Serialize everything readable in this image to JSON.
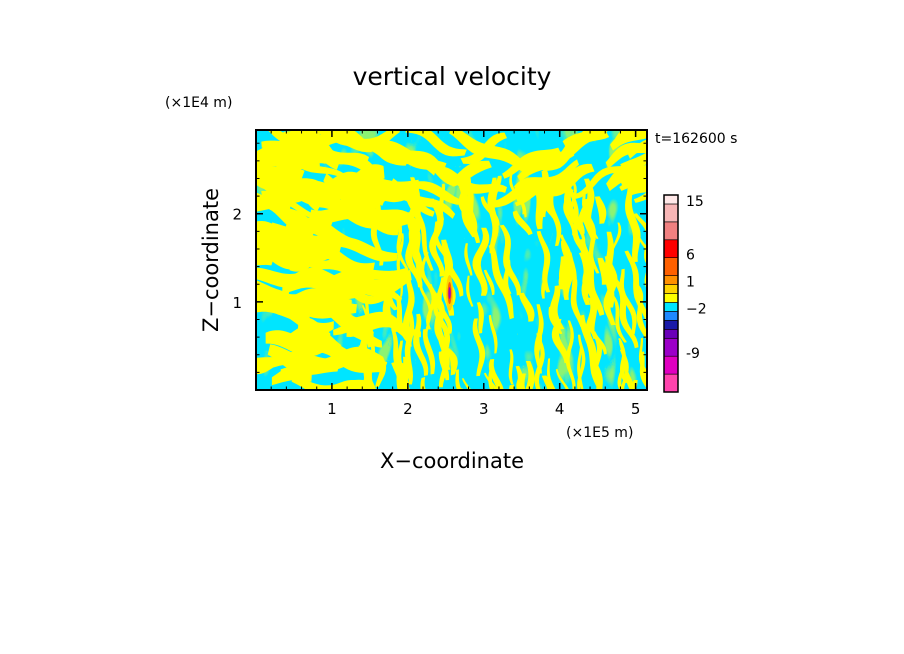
{
  "chart_data": {
    "type": "heatmap",
    "title": "vertical velocity",
    "xlabel": "X−coordinate",
    "ylabel": "Z−coordinate",
    "x_scale_label": "(×1E5 m)",
    "y_scale_label": "(×1E4 m)",
    "time_label": "t=162600 s",
    "xlim": [
      0,
      5.15
    ],
    "ylim": [
      0,
      2.95
    ],
    "x_ticks": [
      {
        "value": 1,
        "label": "1"
      },
      {
        "value": 2,
        "label": "2"
      },
      {
        "value": 3,
        "label": "3"
      },
      {
        "value": 4,
        "label": "4"
      },
      {
        "value": 5,
        "label": "5"
      }
    ],
    "y_ticks": [
      {
        "value": 1,
        "label": "1"
      },
      {
        "value": 2,
        "label": "2"
      }
    ],
    "field_description": "Alternating bands of weak positive (yellow) and weak negative (cyan) vertical velocity; broad wavy bands on the left and top, finer tilted stripes near the center and right; a small strong updraft near x=2.55, z=1.1.",
    "dominant_colors": {
      "positive": "#ffff00",
      "negative": "#00e5ff"
    },
    "hotspot": {
      "x": 2.55,
      "z": 1.1
    },
    "colorbar": {
      "levels": [
        {
          "color": "#ff44ad"
        },
        {
          "color": "#e000c0"
        },
        {
          "color": "#9c00c8"
        },
        {
          "color": "#6a00b8"
        },
        {
          "color": "#1a1aa8"
        },
        {
          "color": "#1e88ff"
        },
        {
          "color": "#00e5ff"
        },
        {
          "color": "#ffff00"
        },
        {
          "color": "#ffd400"
        },
        {
          "color": "#ff9000"
        },
        {
          "color": "#ff6000"
        },
        {
          "color": "#ff0000"
        },
        {
          "color": "#f08080"
        },
        {
          "color": "#f7b6b6"
        },
        {
          "color": "#ffe8e8"
        }
      ],
      "labels": [
        "-9",
        "−2",
        "1",
        "6",
        "15"
      ]
    }
  }
}
